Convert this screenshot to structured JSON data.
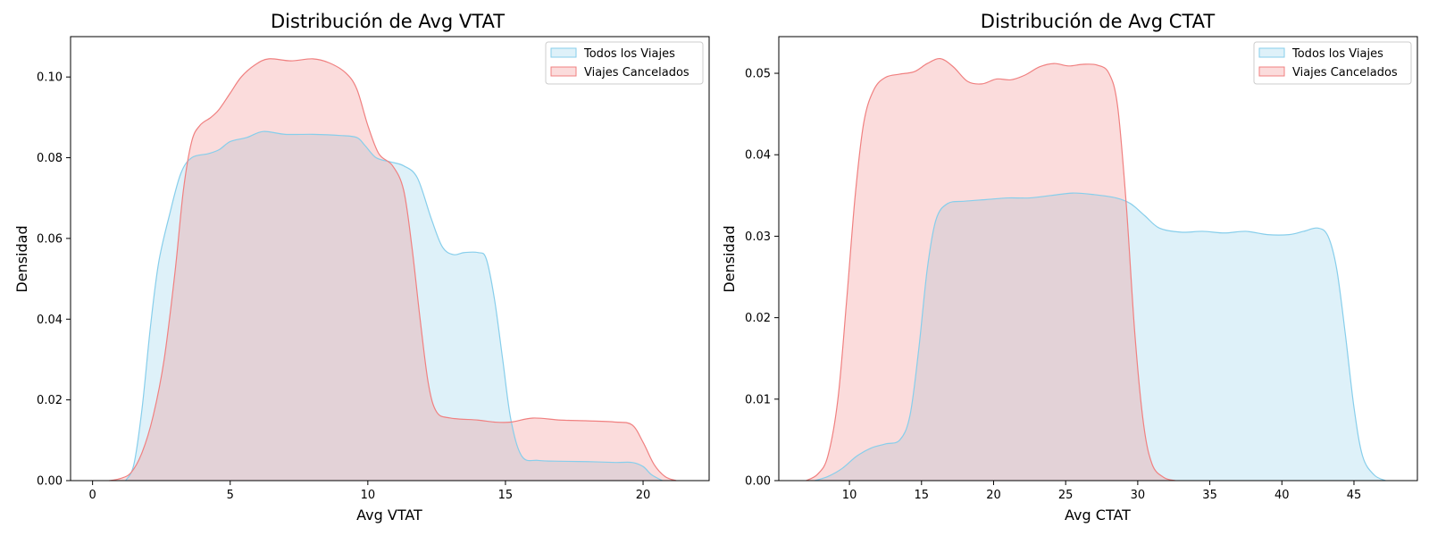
{
  "colors": {
    "all_trips_line": "#87ceeb",
    "all_trips_fill": "#87ceeb",
    "cancelled_line": "#f08080",
    "cancelled_fill": "#f08080"
  },
  "chart_data": [
    {
      "type": "area",
      "title": "Distribución de Avg VTAT",
      "xlabel": "Avg VTAT",
      "ylabel": "Densidad",
      "xlim": [
        -0.8,
        22.4
      ],
      "ylim": [
        0,
        0.11
      ],
      "xticks": [
        0,
        5,
        10,
        15,
        20
      ],
      "xtick_labels": [
        "0",
        "5",
        "10",
        "15",
        "20"
      ],
      "yticks": [
        0,
        0.02,
        0.04,
        0.06,
        0.08,
        0.1
      ],
      "ytick_labels": [
        "0.00",
        "0.02",
        "0.04",
        "0.06",
        "0.08",
        "0.10"
      ],
      "legend_position": "top-right",
      "series": [
        {
          "name": "Todos los Viajes",
          "color_key": "all_trips",
          "points": [
            [
              1.2,
              0
            ],
            [
              1.5,
              0.004
            ],
            [
              1.8,
              0.018
            ],
            [
              2.1,
              0.038
            ],
            [
              2.4,
              0.054
            ],
            [
              2.8,
              0.066
            ],
            [
              3.2,
              0.076
            ],
            [
              3.6,
              0.08
            ],
            [
              4.2,
              0.081
            ],
            [
              4.6,
              0.082
            ],
            [
              5.0,
              0.084
            ],
            [
              5.6,
              0.085
            ],
            [
              6.2,
              0.0865
            ],
            [
              7.0,
              0.0858
            ],
            [
              8.0,
              0.0858
            ],
            [
              9.0,
              0.0855
            ],
            [
              9.6,
              0.085
            ],
            [
              9.9,
              0.083
            ],
            [
              10.3,
              0.08
            ],
            [
              10.8,
              0.079
            ],
            [
              11.3,
              0.078
            ],
            [
              11.8,
              0.075
            ],
            [
              12.3,
              0.065
            ],
            [
              12.7,
              0.058
            ],
            [
              13.1,
              0.056
            ],
            [
              13.5,
              0.0565
            ],
            [
              14.0,
              0.0565
            ],
            [
              14.3,
              0.055
            ],
            [
              14.6,
              0.045
            ],
            [
              14.9,
              0.03
            ],
            [
              15.2,
              0.015
            ],
            [
              15.6,
              0.006
            ],
            [
              16.2,
              0.005
            ],
            [
              17.0,
              0.0048
            ],
            [
              18.0,
              0.0047
            ],
            [
              19.0,
              0.0045
            ],
            [
              19.6,
              0.0045
            ],
            [
              20.0,
              0.0035
            ],
            [
              20.3,
              0.0015
            ],
            [
              20.7,
              0
            ]
          ]
        },
        {
          "name": "Viajes Cancelados",
          "color_key": "cancelled",
          "points": [
            [
              0.6,
              0
            ],
            [
              1.0,
              0.0005
            ],
            [
              1.4,
              0.002
            ],
            [
              1.8,
              0.007
            ],
            [
              2.2,
              0.016
            ],
            [
              2.6,
              0.03
            ],
            [
              3.0,
              0.052
            ],
            [
              3.3,
              0.072
            ],
            [
              3.6,
              0.084
            ],
            [
              3.9,
              0.088
            ],
            [
              4.3,
              0.09
            ],
            [
              4.6,
              0.092
            ],
            [
              5.0,
              0.096
            ],
            [
              5.4,
              0.1
            ],
            [
              5.9,
              0.103
            ],
            [
              6.4,
              0.1045
            ],
            [
              7.2,
              0.104
            ],
            [
              8.0,
              0.1045
            ],
            [
              8.6,
              0.1035
            ],
            [
              9.2,
              0.101
            ],
            [
              9.6,
              0.097
            ],
            [
              10.0,
              0.088
            ],
            [
              10.4,
              0.081
            ],
            [
              10.9,
              0.078
            ],
            [
              11.3,
              0.072
            ],
            [
              11.6,
              0.058
            ],
            [
              11.9,
              0.04
            ],
            [
              12.2,
              0.024
            ],
            [
              12.5,
              0.017
            ],
            [
              13.0,
              0.0155
            ],
            [
              14.0,
              0.015
            ],
            [
              14.6,
              0.0145
            ],
            [
              15.2,
              0.0145
            ],
            [
              16.0,
              0.0155
            ],
            [
              17.0,
              0.015
            ],
            [
              18.0,
              0.0148
            ],
            [
              19.0,
              0.0145
            ],
            [
              19.6,
              0.0138
            ],
            [
              20.0,
              0.0095
            ],
            [
              20.4,
              0.004
            ],
            [
              20.8,
              0.001
            ],
            [
              21.2,
              0
            ]
          ]
        }
      ]
    },
    {
      "type": "area",
      "title": "Distribución de Avg CTAT",
      "xlabel": "Avg CTAT",
      "ylabel": "Densidad",
      "xlim": [
        5.1,
        49.4
      ],
      "ylim": [
        0,
        0.0545
      ],
      "xticks": [
        10,
        15,
        20,
        25,
        30,
        35,
        40,
        45
      ],
      "xtick_labels": [
        "10",
        "15",
        "20",
        "25",
        "30",
        "35",
        "40",
        "45"
      ],
      "yticks": [
        0,
        0.01,
        0.02,
        0.03,
        0.04,
        0.05
      ],
      "ytick_labels": [
        "0.00",
        "0.01",
        "0.02",
        "0.03",
        "0.04",
        "0.05"
      ],
      "legend_position": "top-right",
      "series": [
        {
          "name": "Todos los Viajes",
          "color_key": "all_trips",
          "points": [
            [
              7.6,
              0
            ],
            [
              8.5,
              0.0005
            ],
            [
              9.5,
              0.0015
            ],
            [
              10.5,
              0.003
            ],
            [
              11.5,
              0.004
            ],
            [
              12.5,
              0.0045
            ],
            [
              13.5,
              0.005
            ],
            [
              14.2,
              0.008
            ],
            [
              14.8,
              0.016
            ],
            [
              15.4,
              0.026
            ],
            [
              16.0,
              0.032
            ],
            [
              16.8,
              0.034
            ],
            [
              18.0,
              0.0343
            ],
            [
              19.5,
              0.0345
            ],
            [
              21.0,
              0.0347
            ],
            [
              22.5,
              0.0347
            ],
            [
              24.0,
              0.035
            ],
            [
              25.5,
              0.0353
            ],
            [
              27.0,
              0.0351
            ],
            [
              28.5,
              0.0347
            ],
            [
              29.5,
              0.034
            ],
            [
              30.5,
              0.0325
            ],
            [
              31.5,
              0.031
            ],
            [
              33.0,
              0.0305
            ],
            [
              34.5,
              0.0306
            ],
            [
              36.0,
              0.0304
            ],
            [
              37.5,
              0.0306
            ],
            [
              39.0,
              0.0302
            ],
            [
              40.5,
              0.0302
            ],
            [
              41.5,
              0.0306
            ],
            [
              42.5,
              0.031
            ],
            [
              43.2,
              0.03
            ],
            [
              43.8,
              0.026
            ],
            [
              44.4,
              0.018
            ],
            [
              45.0,
              0.009
            ],
            [
              45.6,
              0.003
            ],
            [
              46.4,
              0.0007
            ],
            [
              47.2,
              0
            ]
          ]
        },
        {
          "name": "Viajes Cancelados",
          "color_key": "cancelled",
          "points": [
            [
              7.0,
              0
            ],
            [
              7.8,
              0.0008
            ],
            [
              8.5,
              0.003
            ],
            [
              9.2,
              0.01
            ],
            [
              9.8,
              0.022
            ],
            [
              10.4,
              0.035
            ],
            [
              11.0,
              0.044
            ],
            [
              11.7,
              0.048
            ],
            [
              12.5,
              0.0495
            ],
            [
              13.5,
              0.0499
            ],
            [
              14.5,
              0.0502
            ],
            [
              15.4,
              0.0512
            ],
            [
              16.3,
              0.0518
            ],
            [
              17.2,
              0.0508
            ],
            [
              18.2,
              0.049
            ],
            [
              19.2,
              0.0487
            ],
            [
              20.2,
              0.0493
            ],
            [
              21.2,
              0.0492
            ],
            [
              22.2,
              0.0498
            ],
            [
              23.2,
              0.0508
            ],
            [
              24.2,
              0.0512
            ],
            [
              25.2,
              0.0509
            ],
            [
              26.2,
              0.0511
            ],
            [
              27.2,
              0.051
            ],
            [
              28.0,
              0.05
            ],
            [
              28.6,
              0.046
            ],
            [
              29.2,
              0.034
            ],
            [
              29.8,
              0.018
            ],
            [
              30.4,
              0.007
            ],
            [
              31.0,
              0.002
            ],
            [
              31.8,
              0.0004
            ],
            [
              32.6,
              0
            ]
          ]
        }
      ]
    }
  ]
}
